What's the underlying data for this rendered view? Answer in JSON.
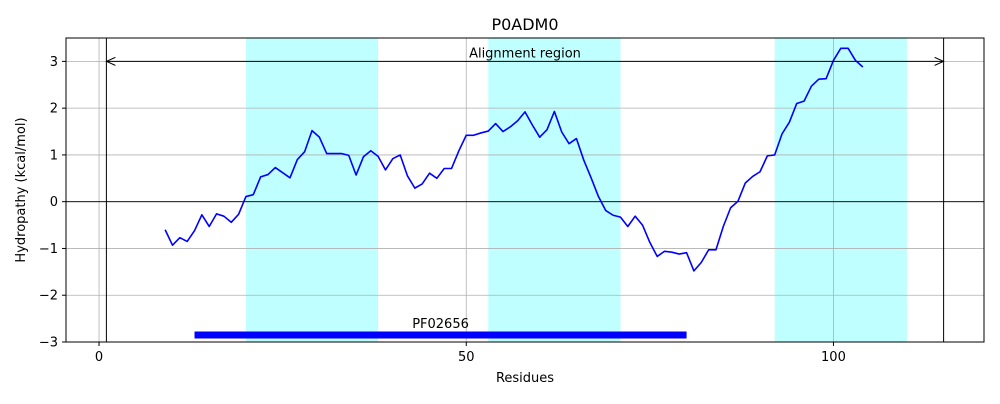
{
  "chart_data": {
    "type": "line",
    "title": "P0ADM0",
    "xlabel": "Residues",
    "ylabel": "Hydropathy (kcal/mol)",
    "xlim": [
      -4.5,
      120.5
    ],
    "ylim": [
      -3,
      3.5
    ],
    "xticks": [
      0,
      50,
      100
    ],
    "yticks": [
      -3,
      -2,
      -1,
      0,
      1,
      2,
      3
    ],
    "ytick_labels": [
      "−3",
      "−2",
      "−1",
      "0",
      "1",
      "2",
      "3"
    ],
    "grid": true,
    "series": [
      {
        "name": "",
        "color": "#0000ff",
        "x": [
          9,
          10,
          11,
          12,
          13,
          14,
          15,
          16,
          17,
          18,
          19,
          20,
          21,
          22,
          23,
          24,
          25,
          26,
          27,
          28,
          29,
          30,
          31,
          32,
          33,
          34,
          35,
          36,
          37,
          38,
          39,
          40,
          41,
          42,
          43,
          44,
          45,
          46,
          47,
          48,
          49,
          50,
          51,
          52,
          53,
          54,
          55,
          56,
          57,
          58,
          59,
          60,
          61,
          62,
          63,
          64,
          65,
          66,
          67,
          68,
          69,
          70,
          71,
          72,
          73,
          74,
          75,
          76,
          77,
          78,
          79,
          80,
          81,
          82,
          83,
          84,
          85,
          86,
          87,
          88,
          89,
          90,
          91,
          92,
          93,
          94,
          95,
          96,
          97,
          98,
          99,
          100,
          101,
          102,
          103,
          104
        ],
        "y": [
          -0.6,
          -0.93,
          -0.77,
          -0.85,
          -0.62,
          -0.28,
          -0.53,
          -0.26,
          -0.31,
          -0.44,
          -0.27,
          0.11,
          0.15,
          0.53,
          0.58,
          0.73,
          0.62,
          0.51,
          0.9,
          1.07,
          1.52,
          1.38,
          1.03,
          1.03,
          1.03,
          0.99,
          0.57,
          0.96,
          1.09,
          0.97,
          0.68,
          0.92,
          1.0,
          0.55,
          0.29,
          0.38,
          0.61,
          0.5,
          0.71,
          0.71,
          1.09,
          1.42,
          1.42,
          1.47,
          1.51,
          1.67,
          1.5,
          1.6,
          1.73,
          1.92,
          1.64,
          1.38,
          1.54,
          1.93,
          1.49,
          1.24,
          1.35,
          0.89,
          0.51,
          0.11,
          -0.19,
          -0.29,
          -0.33,
          -0.53,
          -0.31,
          -0.5,
          -0.87,
          -1.17,
          -1.06,
          -1.08,
          -1.12,
          -1.09,
          -1.48,
          -1.3,
          -1.03,
          -1.03,
          -0.53,
          -0.13,
          0.01,
          0.4,
          0.54,
          0.64,
          0.98,
          1.0,
          1.45,
          1.7,
          2.1,
          2.15,
          2.47,
          2.62,
          2.63,
          3.02,
          3.28,
          3.28,
          3.02,
          2.88
        ]
      }
    ],
    "shaded_regions": [
      {
        "x_start": 20,
        "x_end": 38,
        "color": "#bfffff"
      },
      {
        "x_start": 53,
        "x_end": 71,
        "color": "#bfffff"
      },
      {
        "x_start": 92,
        "x_end": 110,
        "color": "#bfffff"
      }
    ],
    "vertical_lines": [
      1,
      115
    ],
    "annotations": [
      {
        "text": "Alignment region",
        "x_start": 1,
        "x_end": 115,
        "y": 3,
        "style": "double-arrow"
      }
    ],
    "domains": [
      {
        "label": "PF02656",
        "x_start": 13,
        "x_end": 80,
        "y": -2.85,
        "color": "#0000ff"
      }
    ]
  }
}
